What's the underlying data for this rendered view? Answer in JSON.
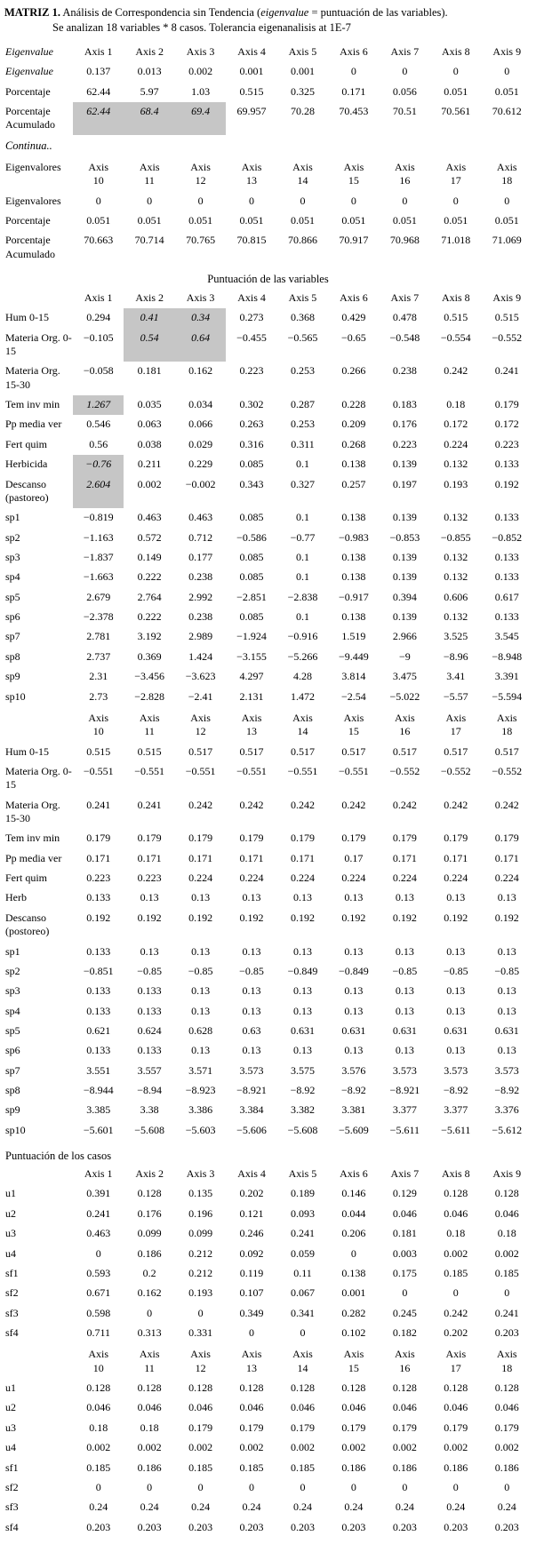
{
  "header": {
    "label": "MATRIZ 1.",
    "title_pre": " Análisis de Correspondencia sin Tendencia (",
    "title_em": "eigenvalue",
    "title_post": " = puntuación de las variables).",
    "subtitle": "Se analizan 18 variables * 8 casos. Tolerancia eigenanalisis at 1E-7"
  },
  "sections": {
    "continua": "Continua..",
    "variables": "Puntuación de las variables",
    "cases": "Puntuación de los casos"
  },
  "highlight_color": "#c6c6c6",
  "tables": {
    "eigen1": {
      "header": [
        {
          "v": "Eigenvalue",
          "s": "i"
        },
        "Axis 1",
        "Axis 2",
        "Axis 3",
        "Axis 4",
        "Axis 5",
        "Axis 6",
        "Axis 7",
        "Axis 8",
        "Axis 9"
      ],
      "rows": [
        {
          "label": "Eigenvalue",
          "ls": "i",
          "cells": [
            "0.137",
            "0.013",
            "0.002",
            "0.001",
            "0.001",
            "0",
            "0",
            "0",
            "0"
          ]
        },
        {
          "label": "Porcentaje",
          "cells": [
            {
              "v": "62.44",
              "s": "b"
            },
            {
              "v": "5.97",
              "s": "b"
            },
            {
              "v": "1.03",
              "s": "b"
            },
            "0.515",
            "0.325",
            "0.171",
            "0.056",
            "0.051",
            "0.051"
          ]
        },
        {
          "label": "Porcentaje Acumulado",
          "cells": [
            {
              "v": "62.44",
              "s": "ih"
            },
            {
              "v": "68.4",
              "s": "ih"
            },
            {
              "v": "69.4",
              "s": "ih"
            },
            "69.957",
            "70.28",
            "70.453",
            "70.51",
            "70.561",
            "70.612"
          ]
        }
      ]
    },
    "eigen2": {
      "header": [
        "Eigenvalores",
        "Axis\n10",
        "Axis\n11",
        "Axis\n12",
        "Axis\n13",
        "Axis\n14",
        "Axis\n15",
        "Axis\n16",
        "Axis\n17",
        "Axis\n18"
      ],
      "rows": [
        {
          "label": "Eigenvalores",
          "cells": [
            "0",
            "0",
            "0",
            "0",
            "0",
            "0",
            "0",
            "0",
            "0"
          ]
        },
        {
          "label": "Porcentaje",
          "cells": [
            "0.051",
            "0.051",
            "0.051",
            "0.051",
            "0.051",
            "0.051",
            "0.051",
            "0.051",
            "0.051"
          ]
        },
        {
          "label": "Porcentaje Acumulado",
          "cells": [
            "70.663",
            "70.714",
            "70.765",
            "70.815",
            "70.866",
            "70.917",
            "70.968",
            "71.018",
            "71.069"
          ]
        }
      ]
    },
    "vars1": {
      "header": [
        "",
        "Axis 1",
        "Axis 2",
        "Axis 3",
        "Axis 4",
        "Axis 5",
        "Axis 6",
        "Axis 7",
        "Axis 8",
        "Axis 9"
      ],
      "rows": [
        {
          "label": "Hum 0-15",
          "ls": "b",
          "cells": [
            "0.294",
            {
              "v": "0.41",
              "s": "ih"
            },
            {
              "v": "0.34",
              "s": "ih"
            },
            "0.273",
            "0.368",
            "0.429",
            "0.478",
            "0.515",
            "0.515"
          ]
        },
        {
          "label": "Materia Org. 0-15",
          "ls": "b",
          "cells": [
            "−0.105",
            {
              "v": "0.54",
              "s": "ih"
            },
            {
              "v": "0.64",
              "s": "ih"
            },
            "−0.455",
            "−0.565",
            "−0.65",
            "−0.548",
            "−0.554",
            "−0.552"
          ]
        },
        {
          "label": "Materia Org. 15-30",
          "ls": "b",
          "cells": [
            "−0.058",
            "0.181",
            "0.162",
            "0.223",
            "0.253",
            "0.266",
            "0.238",
            "0.242",
            "0.241"
          ]
        },
        {
          "label": "Tem inv min",
          "ls": "b",
          "cells": [
            {
              "v": "1.267",
              "s": "ih"
            },
            "0.035",
            "0.034",
            "0.302",
            "0.287",
            "0.228",
            "0.183",
            "0.18",
            "0.179"
          ]
        },
        {
          "label": "Pp media ver",
          "ls": "b",
          "cells": [
            "0.546",
            "0.063",
            "0.066",
            "0.263",
            "0.253",
            "0.209",
            "0.176",
            "0.172",
            "0.172"
          ]
        },
        {
          "label": "Fert quim",
          "ls": "b",
          "cells": [
            "0.56",
            "0.038",
            "0.029",
            "0.316",
            "0.311",
            "0.268",
            "0.223",
            "0.224",
            "0.223"
          ]
        },
        {
          "label": "Herbicida",
          "ls": "b",
          "cells": [
            {
              "v": "−0.76",
              "s": "ih"
            },
            "0.211",
            "0.229",
            "0.085",
            "0.1",
            "0.138",
            "0.139",
            "0.132",
            "0.133"
          ]
        },
        {
          "label": "Descanso (pastoreo)",
          "ls": "b",
          "cells": [
            {
              "v": "2.604",
              "s": "ih"
            },
            "0.002",
            "−0.002",
            "0.343",
            "0.327",
            "0.257",
            "0.197",
            "0.193",
            "0.192"
          ]
        },
        {
          "label": "sp1",
          "ls": "b",
          "cells": [
            "−0.819",
            "0.463",
            "0.463",
            "0.085",
            "0.1",
            "0.138",
            "0.139",
            "0.132",
            "0.133"
          ]
        },
        {
          "label": "sp2",
          "ls": "b",
          "cells": [
            "−1.163",
            "0.572",
            "0.712",
            "−0.586",
            "−0.77",
            "−0.983",
            "−0.853",
            "−0.855",
            "−0.852"
          ]
        },
        {
          "label": "sp3",
          "ls": "b",
          "cells": [
            "−1.837",
            "0.149",
            "0.177",
            "0.085",
            "0.1",
            "0.138",
            "0.139",
            "0.132",
            "0.133"
          ]
        },
        {
          "label": "sp4",
          "ls": "b",
          "cells": [
            "−1.663",
            "0.222",
            "0.238",
            "0.085",
            "0.1",
            "0.138",
            "0.139",
            "0.132",
            "0.133"
          ]
        },
        {
          "label": "sp5",
          "ls": "b",
          "cells": [
            "2.679",
            "2.764",
            "2.992",
            "−2.851",
            "−2.838",
            "−0.917",
            "0.394",
            "0.606",
            "0.617"
          ]
        },
        {
          "label": "sp6",
          "ls": "b",
          "cells": [
            "−2.378",
            "0.222",
            "0.238",
            "0.085",
            "0.1",
            "0.138",
            "0.139",
            "0.132",
            "0.133"
          ]
        },
        {
          "label": "sp7",
          "ls": "b",
          "cells": [
            "2.781",
            "3.192",
            "2.989",
            "−1.924",
            "−0.916",
            "1.519",
            "2.966",
            "3.525",
            "3.545"
          ]
        },
        {
          "label": "sp8",
          "ls": "b",
          "cells": [
            "2.737",
            "0.369",
            "1.424",
            "−3.155",
            "−5.266",
            "−9.449",
            "−9",
            "−8.96",
            "−8.948"
          ]
        },
        {
          "label": "sp9",
          "ls": "b",
          "cells": [
            "2.31",
            "−3.456",
            "−3.623",
            "4.297",
            "4.28",
            "3.814",
            "3.475",
            "3.41",
            "3.391"
          ]
        },
        {
          "label": "sp10",
          "ls": "b",
          "cells": [
            "2.73",
            "−2.828",
            "−2.41",
            "2.131",
            "1.472",
            "−2.54",
            "−5.022",
            "−5.57",
            "−5.594"
          ]
        }
      ]
    },
    "vars2": {
      "header": [
        "",
        "Axis\n10",
        "Axis\n11",
        "Axis\n12",
        "Axis\n13",
        "Axis\n14",
        "Axis\n15",
        "Axis\n16",
        "Axis\n17",
        "Axis\n18"
      ],
      "rows": [
        {
          "label": "Hum 0-15",
          "ls": "b",
          "cells": [
            "0.515",
            "0.515",
            "0.517",
            "0.517",
            "0.517",
            "0.517",
            "0.517",
            "0.517",
            "0.517"
          ]
        },
        {
          "label": "Materia Org. 0-15",
          "ls": "b",
          "cells": [
            "−0.551",
            "−0.551",
            "−0.551",
            "−0.551",
            "−0.551",
            "−0.551",
            "−0.552",
            "−0.552",
            "−0.552"
          ]
        },
        {
          "label": "Materia Org. 15-30",
          "ls": "b",
          "cells": [
            "0.241",
            "0.241",
            "0.242",
            "0.242",
            "0.242",
            "0.242",
            "0.242",
            "0.242",
            "0.242"
          ]
        },
        {
          "label": "Tem inv min",
          "ls": "b",
          "cells": [
            "0.179",
            "0.179",
            "0.179",
            "0.179",
            "0.179",
            "0.179",
            "0.179",
            "0.179",
            "0.179"
          ]
        },
        {
          "label": "Pp media ver",
          "ls": "b",
          "cells": [
            "0.171",
            "0.171",
            "0.171",
            "0.171",
            "0.171",
            "0.17",
            "0.171",
            "0.171",
            "0.171"
          ]
        },
        {
          "label": "Fert quim",
          "ls": "b",
          "cells": [
            "0.223",
            "0.223",
            "0.224",
            "0.224",
            "0.224",
            "0.224",
            "0.224",
            "0.224",
            "0.224"
          ]
        },
        {
          "label": "Herb",
          "ls": "b",
          "cells": [
            "0.133",
            "0.13",
            "0.13",
            "0.13",
            "0.13",
            "0.13",
            "0.13",
            "0.13",
            "0.13"
          ]
        },
        {
          "label": "Descanso (postoreo)",
          "ls": "b",
          "cells": [
            "0.192",
            "0.192",
            "0.192",
            "0.192",
            "0.192",
            "0.192",
            "0.192",
            "0.192",
            "0.192"
          ]
        },
        {
          "label": "sp1",
          "ls": "b",
          "cells": [
            "0.133",
            "0.13",
            "0.13",
            "0.13",
            "0.13",
            "0.13",
            "0.13",
            "0.13",
            "0.13"
          ]
        },
        {
          "label": "sp2",
          "ls": "b",
          "cells": [
            "−0.851",
            "−0.85",
            "−0.85",
            "−0.85",
            "−0.849",
            "−0.849",
            "−0.85",
            "−0.85",
            "−0.85"
          ]
        },
        {
          "label": "sp3",
          "ls": "b",
          "cells": [
            "0.133",
            "0.133",
            "0.13",
            "0.13",
            "0.13",
            "0.13",
            "0.13",
            "0.13",
            "0.13"
          ]
        },
        {
          "label": "sp4",
          "ls": "b",
          "cells": [
            "0.133",
            "0.133",
            "0.13",
            "0.13",
            "0.13",
            "0.13",
            "0.13",
            "0.13",
            "0.13"
          ]
        },
        {
          "label": "sp5",
          "ls": "b",
          "cells": [
            "0.621",
            "0.624",
            "0.628",
            "0.63",
            "0.631",
            "0.631",
            "0.631",
            "0.631",
            "0.631"
          ]
        },
        {
          "label": "sp6",
          "ls": "b",
          "cells": [
            "0.133",
            "0.133",
            "0.13",
            "0.13",
            "0.13",
            "0.13",
            "0.13",
            "0.13",
            "0.13"
          ]
        },
        {
          "label": "sp7",
          "ls": "b",
          "cells": [
            "3.551",
            "3.557",
            "3.571",
            "3.573",
            "3.575",
            "3.576",
            "3.573",
            "3.573",
            "3.573"
          ]
        },
        {
          "label": "sp8",
          "ls": "b",
          "cells": [
            "−8.944",
            "−8.94",
            "−8.923",
            "−8.921",
            "−8.92",
            "−8.92",
            "−8.921",
            "−8.92",
            "−8.92"
          ]
        },
        {
          "label": "sp9",
          "ls": "b",
          "cells": [
            "3.385",
            "3.38",
            "3.386",
            "3.384",
            "3.382",
            "3.381",
            "3.377",
            "3.377",
            "3.376"
          ]
        },
        {
          "label": "sp10",
          "ls": "b",
          "cells": [
            "−5.601",
            "−5.608",
            "−5.603",
            "−5.606",
            "−5.608",
            "−5.609",
            "−5.611",
            "−5.611",
            "−5.612"
          ]
        }
      ]
    },
    "cases1": {
      "header": [
        "",
        "Axis 1",
        "Axis 2",
        "Axis 3",
        "Axis 4",
        "Axis 5",
        "Axis 6",
        "Axis 7",
        "Axis 8",
        "Axis 9"
      ],
      "rows": [
        {
          "label": "u1",
          "ls": "b",
          "cells": [
            "0.391",
            "0.128",
            "0.135",
            "0.202",
            "0.189",
            "0.146",
            "0.129",
            "0.128",
            "0.128"
          ]
        },
        {
          "label": "u2",
          "ls": "b",
          "cells": [
            "0.241",
            "0.176",
            "0.196",
            "0.121",
            "0.093",
            "0.044",
            "0.046",
            "0.046",
            "0.046"
          ]
        },
        {
          "label": "u3",
          "ls": "b",
          "cells": [
            "0.463",
            "0.099",
            "0.099",
            "0.246",
            "0.241",
            "0.206",
            "0.181",
            "0.18",
            "0.18"
          ]
        },
        {
          "label": "u4",
          "ls": "b",
          "cells": [
            "0",
            "0.186",
            "0.212",
            "0.092",
            "0.059",
            "0",
            "0.003",
            "0.002",
            "0.002"
          ]
        },
        {
          "label": "sf1",
          "ls": "b",
          "cells": [
            "0.593",
            "0.2",
            "0.212",
            "0.119",
            "0.11",
            "0.138",
            "0.175",
            "0.185",
            "0.185"
          ]
        },
        {
          "label": "sf2",
          "ls": "b",
          "cells": [
            "0.671",
            "0.162",
            "0.193",
            "0.107",
            "0.067",
            "0.001",
            "0",
            "0",
            "0"
          ]
        },
        {
          "label": "sf3",
          "ls": "b",
          "cells": [
            "0.598",
            "0",
            "0",
            "0.349",
            "0.341",
            "0.282",
            "0.245",
            "0.242",
            "0.241"
          ]
        },
        {
          "label": "sf4",
          "ls": "b",
          "cells": [
            "0.711",
            "0.313",
            "0.331",
            "0",
            "0",
            "0.102",
            "0.182",
            "0.202",
            "0.203"
          ]
        }
      ]
    },
    "cases2": {
      "header": [
        "",
        "Axis\n10",
        "Axis\n11",
        "Axis\n12",
        "Axis\n13",
        "Axis\n14",
        "Axis\n15",
        "Axis\n16",
        "Axis\n17",
        "Axis\n18"
      ],
      "rows": [
        {
          "label": "u1",
          "ls": "b",
          "cells": [
            "0.128",
            "0.128",
            "0.128",
            "0.128",
            "0.128",
            "0.128",
            "0.128",
            "0.128",
            "0.128"
          ]
        },
        {
          "label": "u2",
          "ls": "b",
          "cells": [
            "0.046",
            "0.046",
            "0.046",
            "0.046",
            "0.046",
            "0.046",
            "0.046",
            "0.046",
            "0.046"
          ]
        },
        {
          "label": "u3",
          "ls": "b",
          "cells": [
            "0.18",
            "0.18",
            "0.179",
            "0.179",
            "0.179",
            "0.179",
            "0.179",
            "0.179",
            "0.179"
          ]
        },
        {
          "label": "u4",
          "ls": "b",
          "cells": [
            "0.002",
            "0.002",
            "0.002",
            "0.002",
            "0.002",
            "0.002",
            "0.002",
            "0.002",
            "0.002"
          ]
        },
        {
          "label": "sf1",
          "ls": "b",
          "cells": [
            "0.185",
            "0.186",
            "0.185",
            "0.185",
            "0.185",
            "0.186",
            "0.186",
            "0.186",
            "0.186"
          ]
        },
        {
          "label": "sf2",
          "ls": "b",
          "cells": [
            "0",
            "0",
            "0",
            "0",
            "0",
            "0",
            "0",
            "0",
            "0"
          ]
        },
        {
          "label": "sf3",
          "ls": "b",
          "cells": [
            "0.24",
            "0.24",
            "0.24",
            "0.24",
            "0.24",
            "0.24",
            "0.24",
            "0.24",
            "0.24"
          ]
        },
        {
          "label": "sf4",
          "ls": "b",
          "cells": [
            "0.203",
            "0.203",
            "0.203",
            "0.203",
            "0.203",
            "0.203",
            "0.203",
            "0.203",
            "0.203"
          ]
        }
      ]
    }
  }
}
